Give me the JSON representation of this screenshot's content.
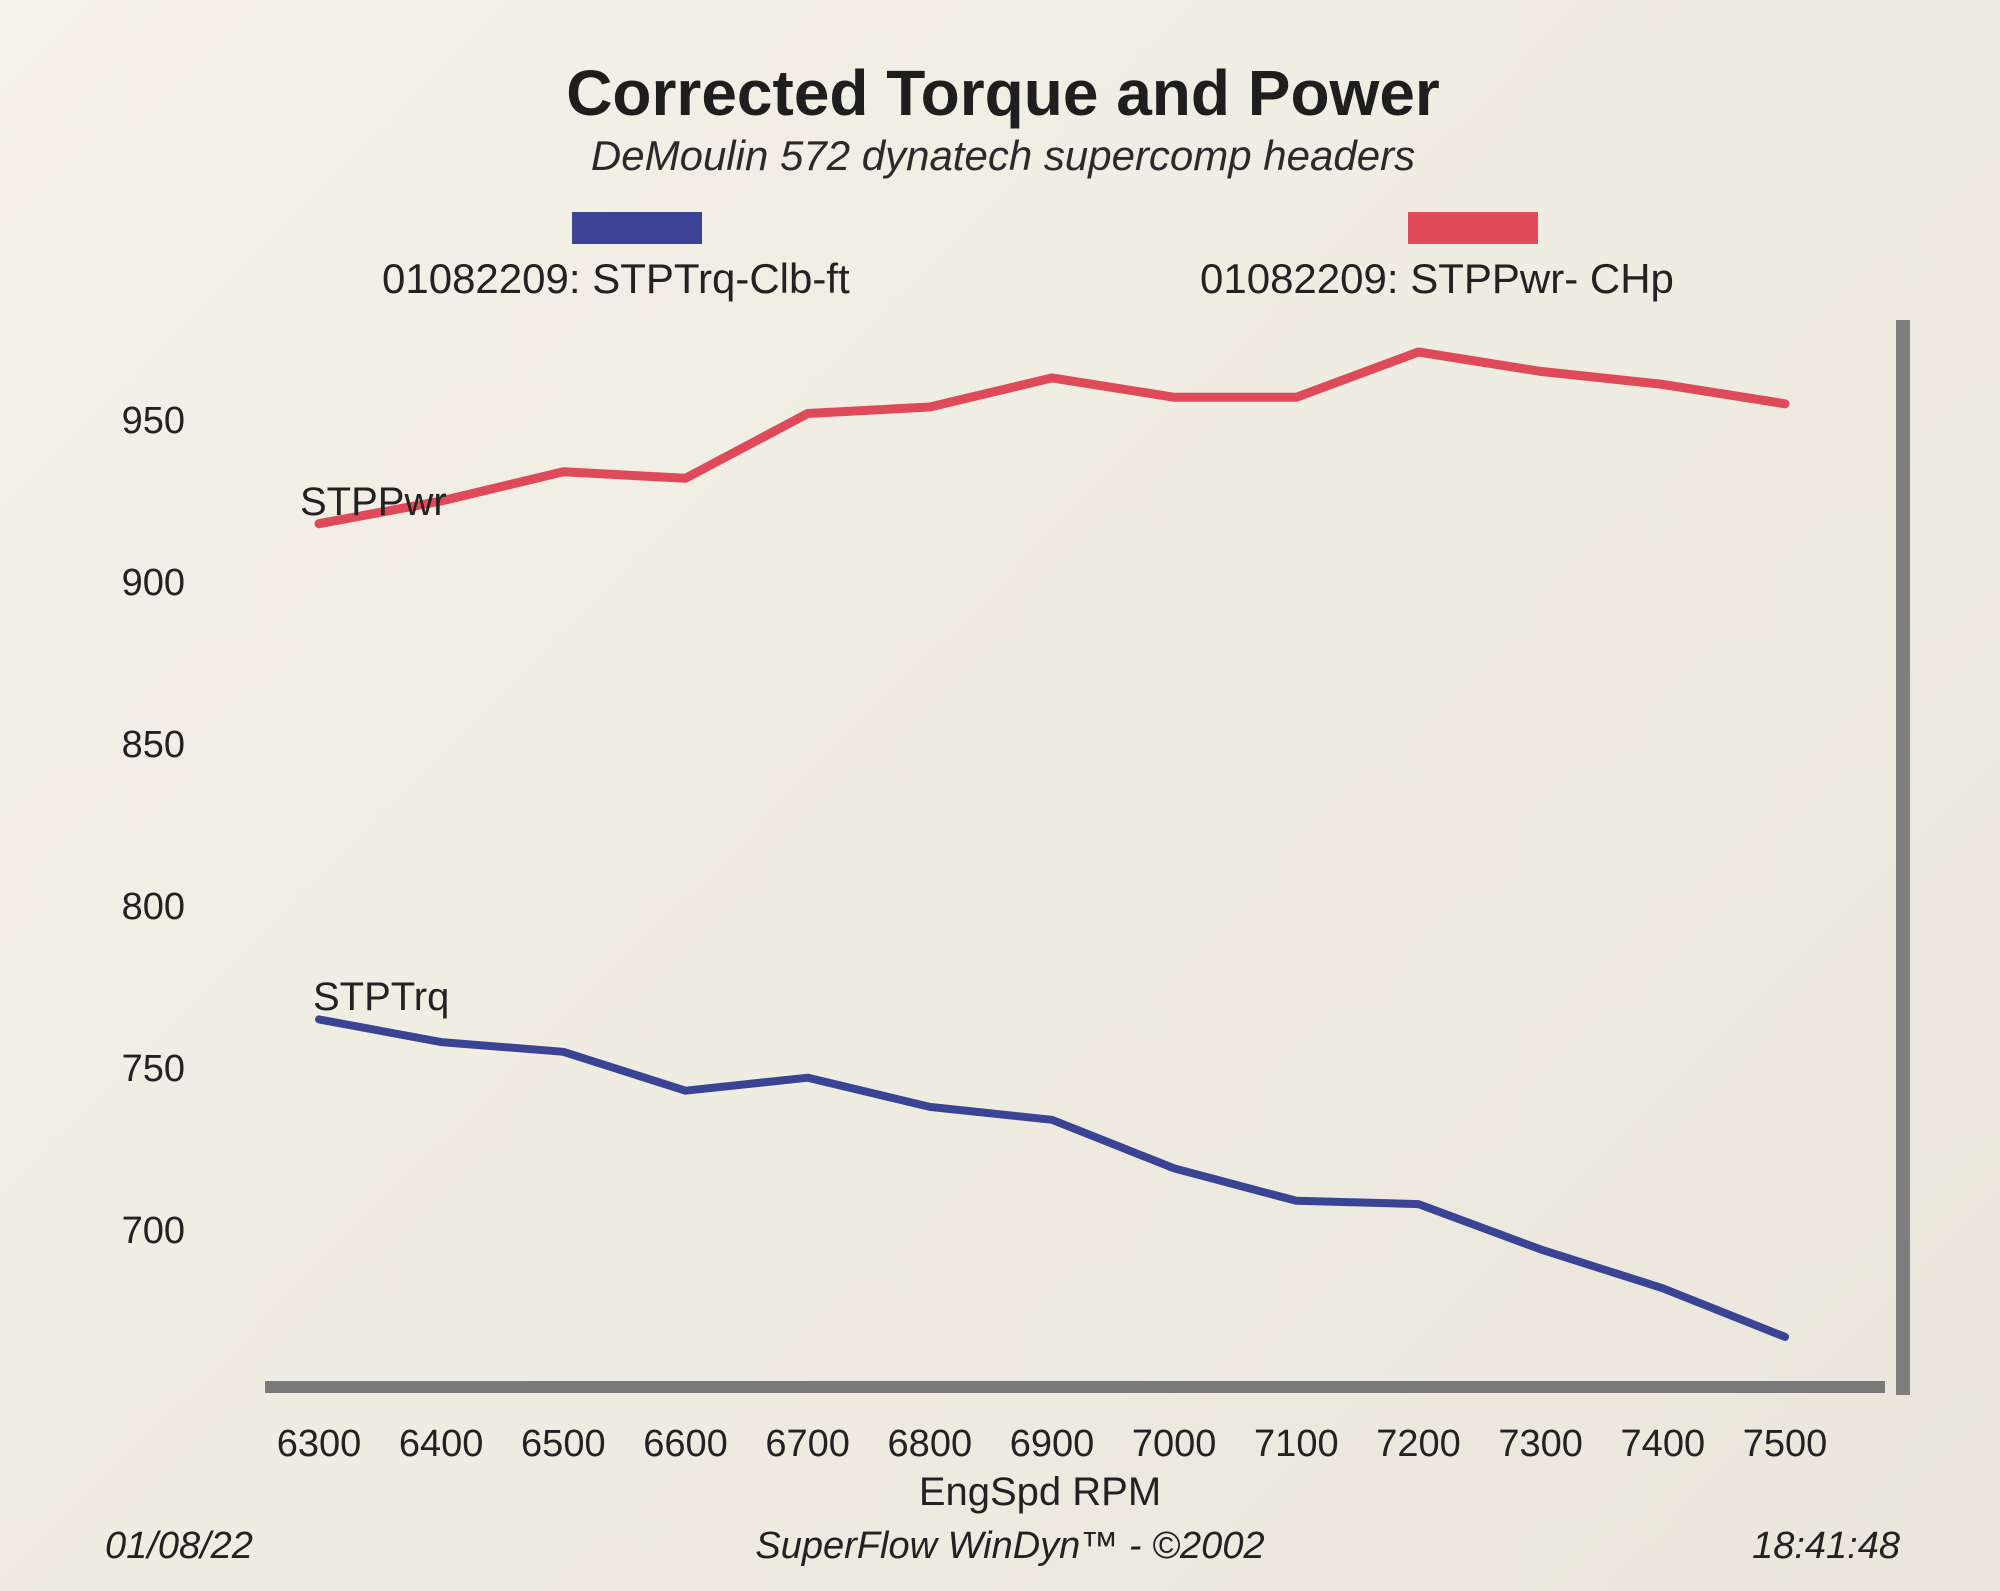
{
  "chart_data": {
    "type": "line",
    "title": "Corrected Torque and Power",
    "subtitle": "DeMoulin 572 dynatech supercomp headers",
    "xlabel": "EngSpd  RPM",
    "ylabel": "",
    "x": [
      6300,
      6400,
      6500,
      6600,
      6700,
      6800,
      6900,
      7000,
      7100,
      7200,
      7300,
      7400,
      7500
    ],
    "xlim": [
      6300,
      7500
    ],
    "ylim": [
      650,
      980
    ],
    "y_ticks": [
      700,
      750,
      800,
      850,
      900,
      950
    ],
    "x_ticks": [
      6300,
      6400,
      6500,
      6600,
      6700,
      6800,
      6900,
      7000,
      7100,
      7200,
      7300,
      7400,
      7500
    ],
    "grid": false,
    "legend_placement": "top",
    "series": [
      {
        "name": "01082209: STPTrq-Clb-ft",
        "label": "STPTrq",
        "color": "#3b4494",
        "values": [
          765,
          758,
          755,
          743,
          747,
          738,
          734,
          719,
          709,
          708,
          694,
          682,
          667
        ]
      },
      {
        "name": "01082209: STPPwr- CHp",
        "label": "STPPwr",
        "color": "#df4a5a",
        "values": [
          918,
          925,
          934,
          932,
          952,
          954,
          963,
          957,
          957,
          971,
          965,
          961,
          955
        ]
      }
    ]
  },
  "footer": {
    "date": "01/08/22",
    "software": "SuperFlow WinDyn™ - ©2002",
    "time": "18:41:48"
  }
}
